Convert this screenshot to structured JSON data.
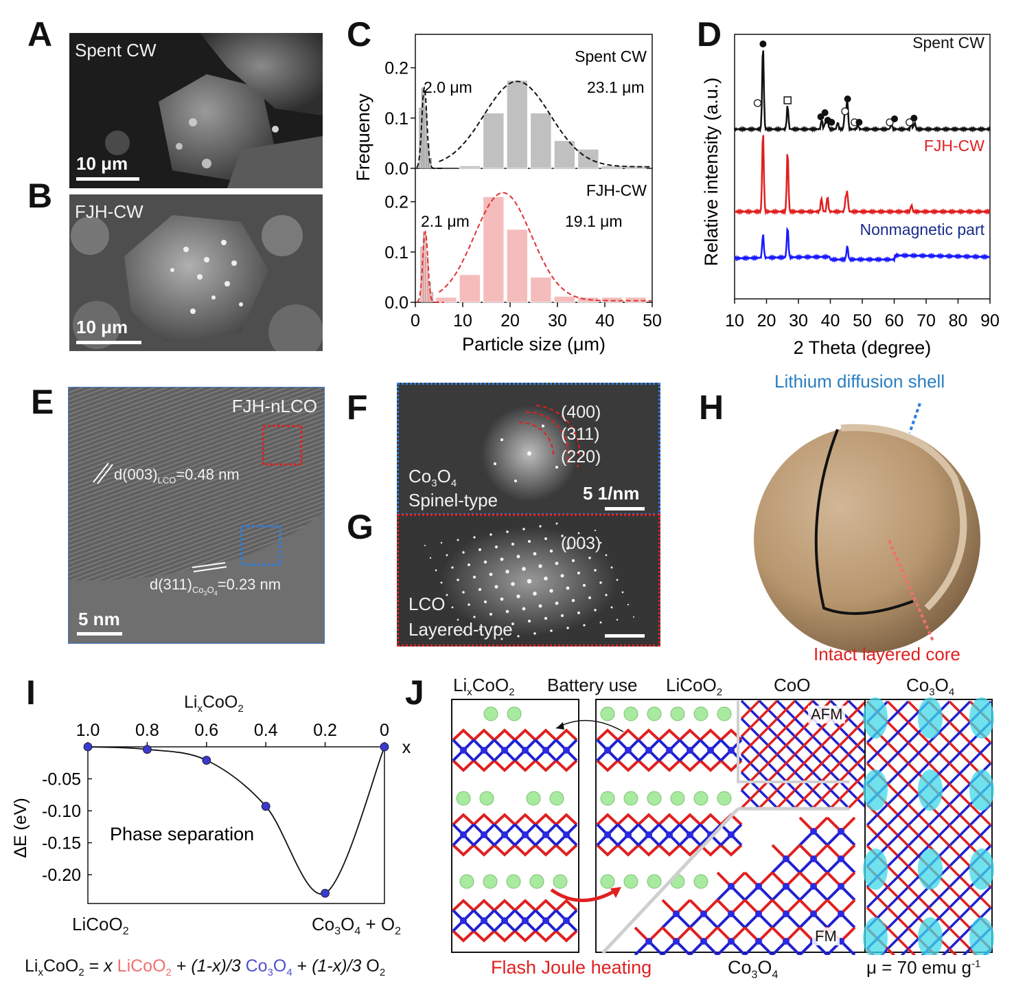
{
  "panels": {
    "A": {
      "letter": "A",
      "label": "Spent CW",
      "scale": "10 μm"
    },
    "B": {
      "letter": "B",
      "label": "FJH-CW",
      "scale": "10 μm"
    },
    "C": {
      "letter": "C"
    },
    "D": {
      "letter": "D"
    },
    "E": {
      "letter": "E",
      "label": "FJH-nLCO",
      "scale": "5 nm",
      "d003": "d(003)",
      "d003_sub": "LCO",
      "d003_val": "=0.48 nm",
      "d311": "d(311)",
      "d311_sub1": "Co",
      "d311_sub2": "3",
      "d311_sub3": "O",
      "d311_sub4": "4",
      "d311_val": "=0.23 nm"
    },
    "F": {
      "letter": "F",
      "ring1": "(400)",
      "ring2": "(311)",
      "ring3": "(220)",
      "phase1": "Co",
      "phase1_sub": "3",
      "phase1_b": "O",
      "phase1_sub2": "4",
      "type": "Spinel-type",
      "scale": "5 1/nm"
    },
    "G": {
      "letter": "G",
      "ring": "(003)",
      "phase": "LCO",
      "type": "Layered-type"
    },
    "H": {
      "letter": "H",
      "shell": "Lithium diffusion shell",
      "core": "Intact layered core"
    },
    "I": {
      "letter": "I",
      "top_axis": "Li",
      "top_axis_sub": "x",
      "top_axis_b": "CoO",
      "top_axis_sub2": "2",
      "x_var": "x",
      "ylabel": "ΔE (eV)",
      "annotation": "Phase separation",
      "left_end": "LiCoO",
      "left_end_sub": "2",
      "right_end": "Co",
      "right_end_sub": "3",
      "right_end_b": "O",
      "right_end_sub2": "4",
      "right_end_c": " + O",
      "right_end_sub3": "2"
    },
    "J": {
      "letter": "J",
      "lbl1": "Li",
      "lbl1_sub": "x",
      "lbl1_b": "CoO",
      "lbl1_sub2": "2",
      "battery": "Battery use",
      "lbl2": "LiCoO",
      "lbl2_sub": "2",
      "lbl3": "CoO",
      "lbl4": "Co",
      "lbl4_sub": "3",
      "lbl4_b": "O",
      "lbl4_sub2": "4",
      "afm": "AFM",
      "fm": "FM",
      "fjh": "Flash Joule heating",
      "bottom": "Co",
      "bottom_sub": "3",
      "bottom_b": "O",
      "bottom_sub2": "4",
      "mu": "μ = 70 emu g",
      "mu_sup": "-1"
    },
    "equation": {
      "a": "Li",
      "a_sub": "x",
      "b": "CoO",
      "b_sub": "2",
      "c": " = ",
      "x": "x",
      "lco": "LiCoO",
      "lco_sub": "2",
      "plus1": " + ",
      "frac1": "(1-x)/3",
      "co": "Co",
      "co_sub": "3",
      "co_b": "O",
      "co_sub2": "4",
      "plus2": " + ",
      "frac2": "(1-x)/3",
      "o": " O",
      "o_sub": "2"
    }
  },
  "chart_data": [
    {
      "type": "bar",
      "id": "C-top",
      "annotation": "Spent CW",
      "peak_labels": [
        "2.0 μm",
        "23.1 μm"
      ],
      "xlabel": "Particle size (μm)",
      "ylabel": "Frequency",
      "xlim": [
        0,
        50
      ],
      "ylim": [
        0,
        0.25
      ],
      "x_ticks": [
        0,
        10,
        20,
        30,
        40,
        50
      ],
      "y_ticks": [
        "0.0",
        "0.1",
        "0.2"
      ],
      "color": "#c0c0c0",
      "small_bars": [
        {
          "x": 1.2,
          "y": 0.12
        },
        {
          "x": 1.7,
          "y": 0.16
        },
        {
          "x": 2.2,
          "y": 0.12
        },
        {
          "x": 2.7,
          "y": 0.05
        },
        {
          "x": 3.2,
          "y": 0.02
        }
      ],
      "bars": [
        {
          "x": 11.5,
          "y": 0.005
        },
        {
          "x": 16.5,
          "y": 0.11
        },
        {
          "x": 21.5,
          "y": 0.175
        },
        {
          "x": 26.5,
          "y": 0.11
        },
        {
          "x": 31.5,
          "y": 0.055
        },
        {
          "x": 36.5,
          "y": 0.038
        },
        {
          "x": 41.5,
          "y": 0.005
        },
        {
          "x": 46.5,
          "y": 0.005
        }
      ],
      "fit_color": "#111111"
    },
    {
      "type": "bar",
      "id": "C-bottom",
      "annotation": "FJH-CW",
      "peak_labels": [
        "2.1 μm",
        "19.1 μm"
      ],
      "xlabel": "Particle size (μm)",
      "ylabel": "Frequency",
      "xlim": [
        0,
        50
      ],
      "ylim": [
        0,
        0.25
      ],
      "x_ticks": [
        0,
        10,
        20,
        30,
        40,
        50
      ],
      "y_ticks": [
        "0.0",
        "0.1",
        "0.2"
      ],
      "color": "#f5bcbc",
      "small_bars": [
        {
          "x": 1.5,
          "y": 0.11
        },
        {
          "x": 2.0,
          "y": 0.14
        },
        {
          "x": 2.5,
          "y": 0.09
        },
        {
          "x": 3.0,
          "y": 0.04
        },
        {
          "x": 3.5,
          "y": 0.02
        }
      ],
      "bars": [
        {
          "x": 6.5,
          "y": 0.01
        },
        {
          "x": 11.5,
          "y": 0.055
        },
        {
          "x": 16.5,
          "y": 0.21
        },
        {
          "x": 21.5,
          "y": 0.145
        },
        {
          "x": 26.5,
          "y": 0.05
        },
        {
          "x": 31.5,
          "y": 0.012
        },
        {
          "x": 36.5,
          "y": 0.01
        },
        {
          "x": 41.5,
          "y": 0.01
        },
        {
          "x": 46.5,
          "y": 0.01
        }
      ],
      "fit_color": "#e03030"
    },
    {
      "type": "line",
      "id": "D",
      "xlabel": "2 Theta (degree)",
      "ylabel": "Relative intensity (a.u.)",
      "xlim": [
        10,
        90
      ],
      "x_ticks": [
        10,
        20,
        30,
        40,
        50,
        60,
        70,
        80,
        90
      ],
      "series": [
        {
          "name": "Spent CW",
          "color": "#111111",
          "peaks": [
            18.9,
            26.6,
            37.3,
            38.4,
            39.1,
            42.3,
            44.6,
            45.3,
            48.6,
            59.1,
            65.4,
            66.4
          ]
        },
        {
          "name": "FJH-CW",
          "color": "#e02020",
          "peaks": [
            18.9,
            26.6,
            37.2,
            39.1,
            44.8,
            45.3,
            65.4
          ]
        },
        {
          "name": "Nonmagnetic part",
          "color": "#1a1aff",
          "peaks": [
            18.9,
            26.6,
            45.3
          ]
        }
      ]
    },
    {
      "type": "line",
      "id": "I",
      "x": [
        1.0,
        0.8,
        0.6,
        0.4,
        0.2,
        0
      ],
      "x_tick_labels": [
        "1.0",
        "0.8",
        "0.6",
        "0.4",
        "0.2",
        "0"
      ],
      "y": [
        0.0,
        -0.004,
        -0.021,
        -0.093,
        -0.229,
        0.0
      ],
      "y_ticks": [
        "-0.05",
        "-0.10",
        "-0.15",
        "-0.20"
      ],
      "ylim": [
        -0.245,
        0.0
      ],
      "point_color": "#3a3acc",
      "line_color": "#111111"
    }
  ]
}
